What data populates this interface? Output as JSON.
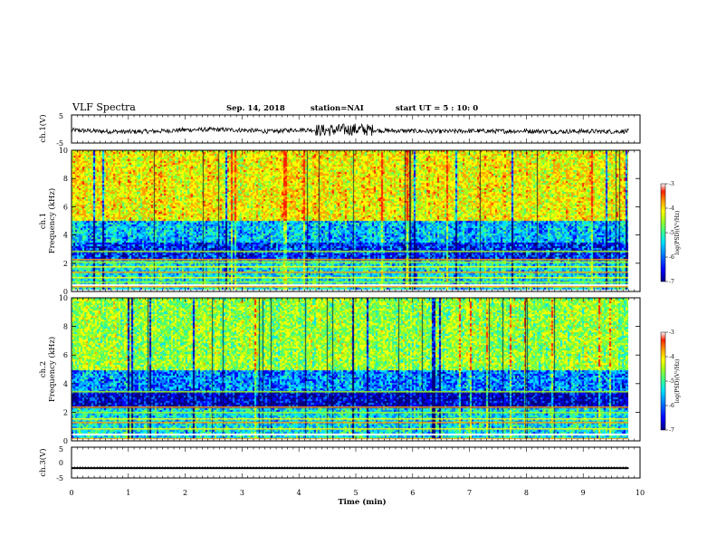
{
  "header": {
    "title": "VLF Spectra",
    "date": "Sep. 14, 2018",
    "station": "station=NAI",
    "start": "start  UT =  5 : 10: 0"
  },
  "colors": {
    "scale": [
      "#000080",
      "#0000ff",
      "#0080ff",
      "#00e0ff",
      "#40ff80",
      "#a0ff20",
      "#ffff00",
      "#ffa000",
      "#ff2000",
      "#ffffff"
    ]
  },
  "chart_data": [
    {
      "type": "line",
      "panel": "ch1-waveform",
      "ylabel": "ch.1(V)",
      "ylim": [
        -5,
        5
      ],
      "yticks": [
        "5",
        "-5"
      ],
      "x": [
        0,
        0.5,
        1,
        1.5,
        2,
        2.5,
        3,
        3.5,
        4,
        4.5,
        5,
        5.5,
        6,
        6.5,
        7,
        7.5,
        8,
        8.5,
        9,
        9.5,
        9.8
      ],
      "y": [
        -0.4,
        -0.8,
        -1.0,
        -0.8,
        -0.3,
        -0.2,
        -0.4,
        -0.9,
        -0.2,
        -0.5,
        -0.1,
        -0.6,
        -0.7,
        -0.9,
        -0.7,
        -0.8,
        -0.7,
        -0.9,
        -0.8,
        -0.9,
        -0.8
      ]
    },
    {
      "type": "heatmap",
      "panel": "ch1-spectrogram",
      "ylabel": "ch.1\nFrequency  (kHz)",
      "ylim": [
        0,
        10
      ],
      "yticks": [
        "10",
        "8",
        "6",
        "4",
        "2",
        "0"
      ],
      "xlim": [
        0,
        9.8
      ],
      "colorbar": {
        "label": "log(PSD)(V²/Hz)",
        "range": [
          -7,
          -3
        ],
        "ticks": [
          "-3",
          "-4",
          "-5",
          "-6",
          "-7"
        ]
      }
    },
    {
      "type": "heatmap",
      "panel": "ch2-spectrogram",
      "ylabel": "ch.2\nFrequency  (kHz)",
      "ylim": [
        0,
        10
      ],
      "yticks": [
        "10",
        "8",
        "6",
        "4",
        "2",
        "0"
      ],
      "xlim": [
        0,
        9.8
      ],
      "colorbar": {
        "label": "log(PSD)(V²/Hz)",
        "range": [
          -7,
          -3
        ],
        "ticks": [
          "-3",
          "-4",
          "-5",
          "-6",
          "-7"
        ]
      }
    },
    {
      "type": "line",
      "panel": "ch3-waveform",
      "ylabel": "ch.3(V)",
      "ylim": [
        -5,
        5
      ],
      "yticks": [
        "5",
        "0",
        "-5"
      ],
      "x": [
        0,
        9.8
      ],
      "y": [
        -1.8,
        -1.8
      ]
    }
  ],
  "xaxis": {
    "label": "Time  (min)",
    "range": [
      0,
      10
    ],
    "ticks": [
      "0",
      "1",
      "2",
      "3",
      "4",
      "5",
      "6",
      "7",
      "8",
      "9",
      "10"
    ]
  }
}
